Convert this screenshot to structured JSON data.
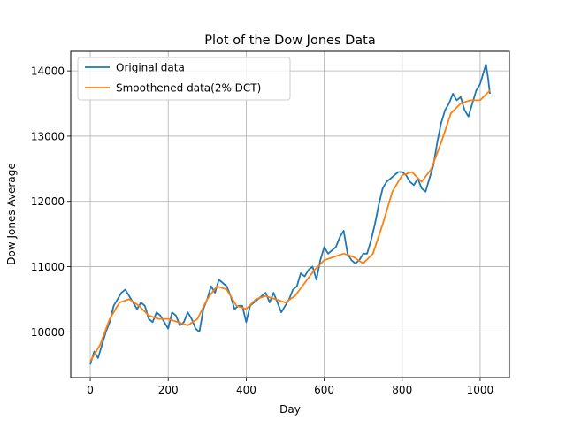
{
  "chart_data": {
    "type": "line",
    "title": "Plot of the Dow Jones Data",
    "xlabel": "Day",
    "ylabel": "Dow Jones Average",
    "xlim": [
      -50,
      1075
    ],
    "ylim": [
      9300,
      14300
    ],
    "xticks": [
      0,
      200,
      400,
      600,
      800,
      1000
    ],
    "yticks": [
      10000,
      11000,
      12000,
      13000,
      14000
    ],
    "grid": true,
    "legend_position": "upper left",
    "series": [
      {
        "name": "Original data",
        "color": "#1f77b4",
        "x": [
          0,
          10,
          20,
          30,
          40,
          50,
          60,
          70,
          80,
          90,
          100,
          110,
          120,
          130,
          140,
          150,
          160,
          170,
          180,
          190,
          200,
          210,
          220,
          230,
          240,
          250,
          260,
          270,
          280,
          290,
          300,
          310,
          320,
          330,
          340,
          350,
          360,
          370,
          380,
          390,
          400,
          410,
          420,
          430,
          440,
          450,
          460,
          470,
          480,
          490,
          500,
          510,
          520,
          530,
          540,
          550,
          560,
          570,
          580,
          590,
          600,
          610,
          620,
          630,
          640,
          650,
          660,
          670,
          680,
          690,
          700,
          710,
          720,
          730,
          740,
          750,
          760,
          770,
          780,
          790,
          800,
          810,
          820,
          830,
          840,
          850,
          860,
          870,
          880,
          890,
          900,
          910,
          920,
          930,
          940,
          950,
          960,
          970,
          980,
          990,
          1000,
          1010,
          1015,
          1020,
          1025
        ],
        "y": [
          9500,
          9700,
          9600,
          9800,
          10000,
          10150,
          10400,
          10500,
          10600,
          10650,
          10550,
          10450,
          10350,
          10450,
          10400,
          10200,
          10150,
          10300,
          10250,
          10150,
          10050,
          10300,
          10250,
          10100,
          10150,
          10300,
          10200,
          10050,
          10000,
          10350,
          10500,
          10700,
          10600,
          10800,
          10750,
          10700,
          10550,
          10350,
          10400,
          10400,
          10150,
          10400,
          10450,
          10500,
          10550,
          10600,
          10450,
          10600,
          10450,
          10300,
          10400,
          10500,
          10650,
          10700,
          10900,
          10850,
          10950,
          11000,
          10800,
          11100,
          11300,
          11200,
          11250,
          11300,
          11450,
          11550,
          11200,
          11100,
          11050,
          11100,
          11200,
          11200,
          11400,
          11650,
          11950,
          12200,
          12300,
          12350,
          12400,
          12450,
          12450,
          12400,
          12300,
          12250,
          12350,
          12200,
          12150,
          12350,
          12550,
          12900,
          13200,
          13400,
          13500,
          13650,
          13550,
          13600,
          13400,
          13300,
          13500,
          13700,
          13800,
          14000,
          14100,
          13900,
          13650
        ]
      },
      {
        "name": "Smoothened data(2% DCT)",
        "color": "#ff7f0e",
        "x": [
          0,
          25,
          50,
          75,
          100,
          125,
          150,
          175,
          200,
          225,
          250,
          275,
          300,
          325,
          350,
          375,
          400,
          425,
          450,
          475,
          500,
          525,
          550,
          575,
          600,
          625,
          650,
          675,
          700,
          725,
          750,
          775,
          800,
          825,
          850,
          875,
          900,
          925,
          950,
          975,
          1000,
          1025
        ],
        "y": [
          9550,
          9800,
          10200,
          10450,
          10500,
          10400,
          10250,
          10200,
          10200,
          10150,
          10100,
          10200,
          10500,
          10700,
          10650,
          10400,
          10350,
          10500,
          10550,
          10500,
          10450,
          10550,
          10750,
          10950,
          11100,
          11150,
          11200,
          11150,
          11050,
          11200,
          11650,
          12150,
          12400,
          12450,
          12300,
          12500,
          12900,
          13350,
          13500,
          13550,
          13550,
          13700
        ]
      }
    ]
  }
}
